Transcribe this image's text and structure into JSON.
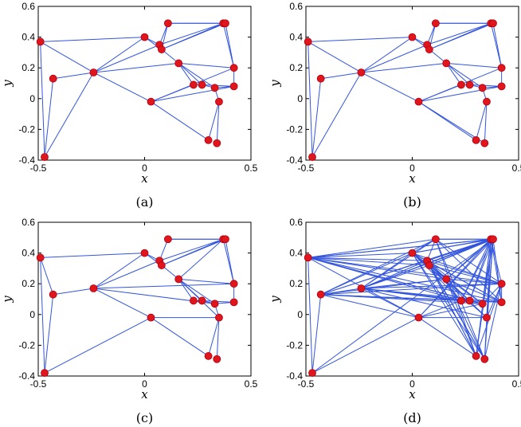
{
  "chart_data": {
    "type": "scatter",
    "description_kind": "network graph on scatter points",
    "xlim": [
      -0.5,
      0.5
    ],
    "ylim": [
      -0.4,
      0.6
    ],
    "xticks": [
      "-0.5",
      "0",
      "0.5"
    ],
    "yticks": [
      "0.6",
      "0.4",
      "0.2",
      "0",
      "-0.2",
      "-0.4"
    ],
    "xlabel": "x",
    "ylabel": "y",
    "grid": false,
    "node_color": "#e0161c",
    "edge_color": "#3355dd",
    "nodes": [
      [
        -0.49,
        0.37
      ],
      [
        -0.43,
        0.13
      ],
      [
        -0.24,
        0.17
      ],
      [
        0.0,
        0.4
      ],
      [
        0.07,
        0.35
      ],
      [
        0.08,
        0.32
      ],
      [
        0.11,
        0.49
      ],
      [
        0.16,
        0.23
      ],
      [
        -0.47,
        -0.38
      ],
      [
        0.03,
        -0.02
      ],
      [
        0.23,
        0.09
      ],
      [
        0.27,
        0.09
      ],
      [
        0.33,
        0.07
      ],
      [
        0.35,
        -0.02
      ],
      [
        0.3,
        -0.27
      ],
      [
        0.34,
        -0.29
      ],
      [
        0.37,
        0.49
      ],
      [
        0.38,
        0.49
      ],
      [
        0.42,
        0.2
      ],
      [
        0.42,
        0.08
      ]
    ],
    "panels": [
      {
        "label": "(a)",
        "edges": [
          [
            0,
            3
          ],
          [
            0,
            2
          ],
          [
            0,
            8
          ],
          [
            1,
            2
          ],
          [
            1,
            8
          ],
          [
            2,
            3
          ],
          [
            2,
            4
          ],
          [
            2,
            7
          ],
          [
            2,
            9
          ],
          [
            2,
            8
          ],
          [
            3,
            4
          ],
          [
            3,
            5
          ],
          [
            4,
            6
          ],
          [
            4,
            16
          ],
          [
            5,
            16
          ],
          [
            5,
            7
          ],
          [
            6,
            16
          ],
          [
            6,
            17
          ],
          [
            7,
            10
          ],
          [
            7,
            11
          ],
          [
            7,
            12
          ],
          [
            7,
            18
          ],
          [
            9,
            10
          ],
          [
            9,
            14
          ],
          [
            9,
            18
          ],
          [
            9,
            19
          ],
          [
            10,
            11
          ],
          [
            11,
            12
          ],
          [
            12,
            13
          ],
          [
            12,
            19
          ],
          [
            13,
            14
          ],
          [
            13,
            15
          ],
          [
            16,
            18
          ],
          [
            17,
            18
          ],
          [
            18,
            19
          ],
          [
            11,
            19
          ],
          [
            6,
            5
          ],
          [
            5,
            17
          ]
        ]
      },
      {
        "label": "(b)",
        "edges": [
          [
            0,
            3
          ],
          [
            0,
            2
          ],
          [
            0,
            8
          ],
          [
            1,
            2
          ],
          [
            1,
            8
          ],
          [
            2,
            3
          ],
          [
            2,
            4
          ],
          [
            2,
            7
          ],
          [
            2,
            9
          ],
          [
            2,
            8
          ],
          [
            3,
            4
          ],
          [
            3,
            5
          ],
          [
            4,
            6
          ],
          [
            4,
            16
          ],
          [
            5,
            16
          ],
          [
            5,
            7
          ],
          [
            6,
            16
          ],
          [
            6,
            17
          ],
          [
            7,
            10
          ],
          [
            7,
            11
          ],
          [
            7,
            12
          ],
          [
            7,
            18
          ],
          [
            9,
            10
          ],
          [
            9,
            14
          ],
          [
            9,
            15
          ],
          [
            9,
            18
          ],
          [
            9,
            19
          ],
          [
            10,
            11
          ],
          [
            11,
            12
          ],
          [
            12,
            13
          ],
          [
            12,
            19
          ],
          [
            13,
            14
          ],
          [
            13,
            15
          ],
          [
            16,
            18
          ],
          [
            17,
            18
          ],
          [
            18,
            19
          ],
          [
            11,
            19
          ],
          [
            6,
            5
          ],
          [
            5,
            17
          ]
        ]
      },
      {
        "label": "(c)",
        "edges": [
          [
            0,
            3
          ],
          [
            0,
            1
          ],
          [
            0,
            8
          ],
          [
            1,
            2
          ],
          [
            1,
            8
          ],
          [
            2,
            3
          ],
          [
            2,
            4
          ],
          [
            2,
            9
          ],
          [
            2,
            12
          ],
          [
            3,
            4
          ],
          [
            3,
            5
          ],
          [
            4,
            6
          ],
          [
            4,
            16
          ],
          [
            5,
            16
          ],
          [
            5,
            7
          ],
          [
            6,
            16
          ],
          [
            6,
            17
          ],
          [
            7,
            10
          ],
          [
            7,
            11
          ],
          [
            7,
            12
          ],
          [
            7,
            13
          ],
          [
            7,
            18
          ],
          [
            9,
            8
          ],
          [
            9,
            14
          ],
          [
            9,
            13
          ],
          [
            10,
            11
          ],
          [
            11,
            12
          ],
          [
            12,
            13
          ],
          [
            12,
            19
          ],
          [
            13,
            14
          ],
          [
            13,
            15
          ],
          [
            16,
            18
          ],
          [
            17,
            18
          ],
          [
            18,
            19
          ],
          [
            11,
            19
          ],
          [
            5,
            17
          ],
          [
            7,
            16
          ],
          [
            2,
            18
          ]
        ]
      },
      {
        "label": "(d)",
        "edges": [
          [
            0,
            3
          ],
          [
            0,
            4
          ],
          [
            0,
            5
          ],
          [
            0,
            6
          ],
          [
            0,
            7
          ],
          [
            0,
            8
          ],
          [
            0,
            9
          ],
          [
            0,
            10
          ],
          [
            0,
            11
          ],
          [
            0,
            12
          ],
          [
            0,
            16
          ],
          [
            0,
            17
          ],
          [
            0,
            18
          ],
          [
            0,
            19
          ],
          [
            1,
            2
          ],
          [
            1,
            3
          ],
          [
            1,
            6
          ],
          [
            1,
            7
          ],
          [
            1,
            8
          ],
          [
            1,
            9
          ],
          [
            1,
            10
          ],
          [
            1,
            11
          ],
          [
            1,
            12
          ],
          [
            1,
            16
          ],
          [
            1,
            17
          ],
          [
            1,
            18
          ],
          [
            1,
            19
          ],
          [
            2,
            3
          ],
          [
            2,
            4
          ],
          [
            2,
            5
          ],
          [
            2,
            6
          ],
          [
            2,
            7
          ],
          [
            2,
            9
          ],
          [
            2,
            10
          ],
          [
            2,
            11
          ],
          [
            2,
            12
          ],
          [
            2,
            13
          ],
          [
            2,
            16
          ],
          [
            2,
            17
          ],
          [
            2,
            18
          ],
          [
            2,
            19
          ],
          [
            3,
            4
          ],
          [
            3,
            5
          ],
          [
            3,
            6
          ],
          [
            3,
            7
          ],
          [
            3,
            10
          ],
          [
            3,
            11
          ],
          [
            3,
            12
          ],
          [
            3,
            13
          ],
          [
            3,
            14
          ],
          [
            3,
            15
          ],
          [
            3,
            16
          ],
          [
            3,
            17
          ],
          [
            3,
            18
          ],
          [
            3,
            19
          ],
          [
            4,
            6
          ],
          [
            4,
            7
          ],
          [
            4,
            10
          ],
          [
            4,
            11
          ],
          [
            4,
            12
          ],
          [
            4,
            13
          ],
          [
            4,
            14
          ],
          [
            4,
            15
          ],
          [
            4,
            16
          ],
          [
            4,
            17
          ],
          [
            4,
            18
          ],
          [
            4,
            19
          ],
          [
            5,
            7
          ],
          [
            5,
            14
          ],
          [
            5,
            15
          ],
          [
            5,
            16
          ],
          [
            5,
            17
          ],
          [
            5,
            18
          ],
          [
            6,
            14
          ],
          [
            6,
            15
          ],
          [
            6,
            16
          ],
          [
            6,
            17
          ],
          [
            6,
            18
          ],
          [
            6,
            19
          ],
          [
            7,
            14
          ],
          [
            7,
            15
          ],
          [
            7,
            16
          ],
          [
            7,
            17
          ],
          [
            7,
            18
          ],
          [
            7,
            19
          ],
          [
            8,
            9
          ],
          [
            8,
            17
          ],
          [
            9,
            10
          ],
          [
            9,
            12
          ],
          [
            9,
            13
          ],
          [
            9,
            14
          ],
          [
            9,
            16
          ],
          [
            9,
            17
          ],
          [
            10,
            16
          ],
          [
            10,
            17
          ],
          [
            11,
            16
          ],
          [
            11,
            17
          ],
          [
            12,
            16
          ],
          [
            12,
            17
          ],
          [
            13,
            16
          ],
          [
            13,
            17
          ],
          [
            14,
            16
          ],
          [
            14,
            17
          ],
          [
            14,
            18
          ],
          [
            15,
            16
          ],
          [
            15,
            17
          ],
          [
            15,
            18
          ],
          [
            16,
            18
          ],
          [
            16,
            19
          ],
          [
            17,
            19
          ],
          [
            18,
            19
          ],
          [
            10,
            19
          ],
          [
            11,
            19
          ],
          [
            12,
            18
          ],
          [
            13,
            18
          ]
        ]
      }
    ]
  }
}
